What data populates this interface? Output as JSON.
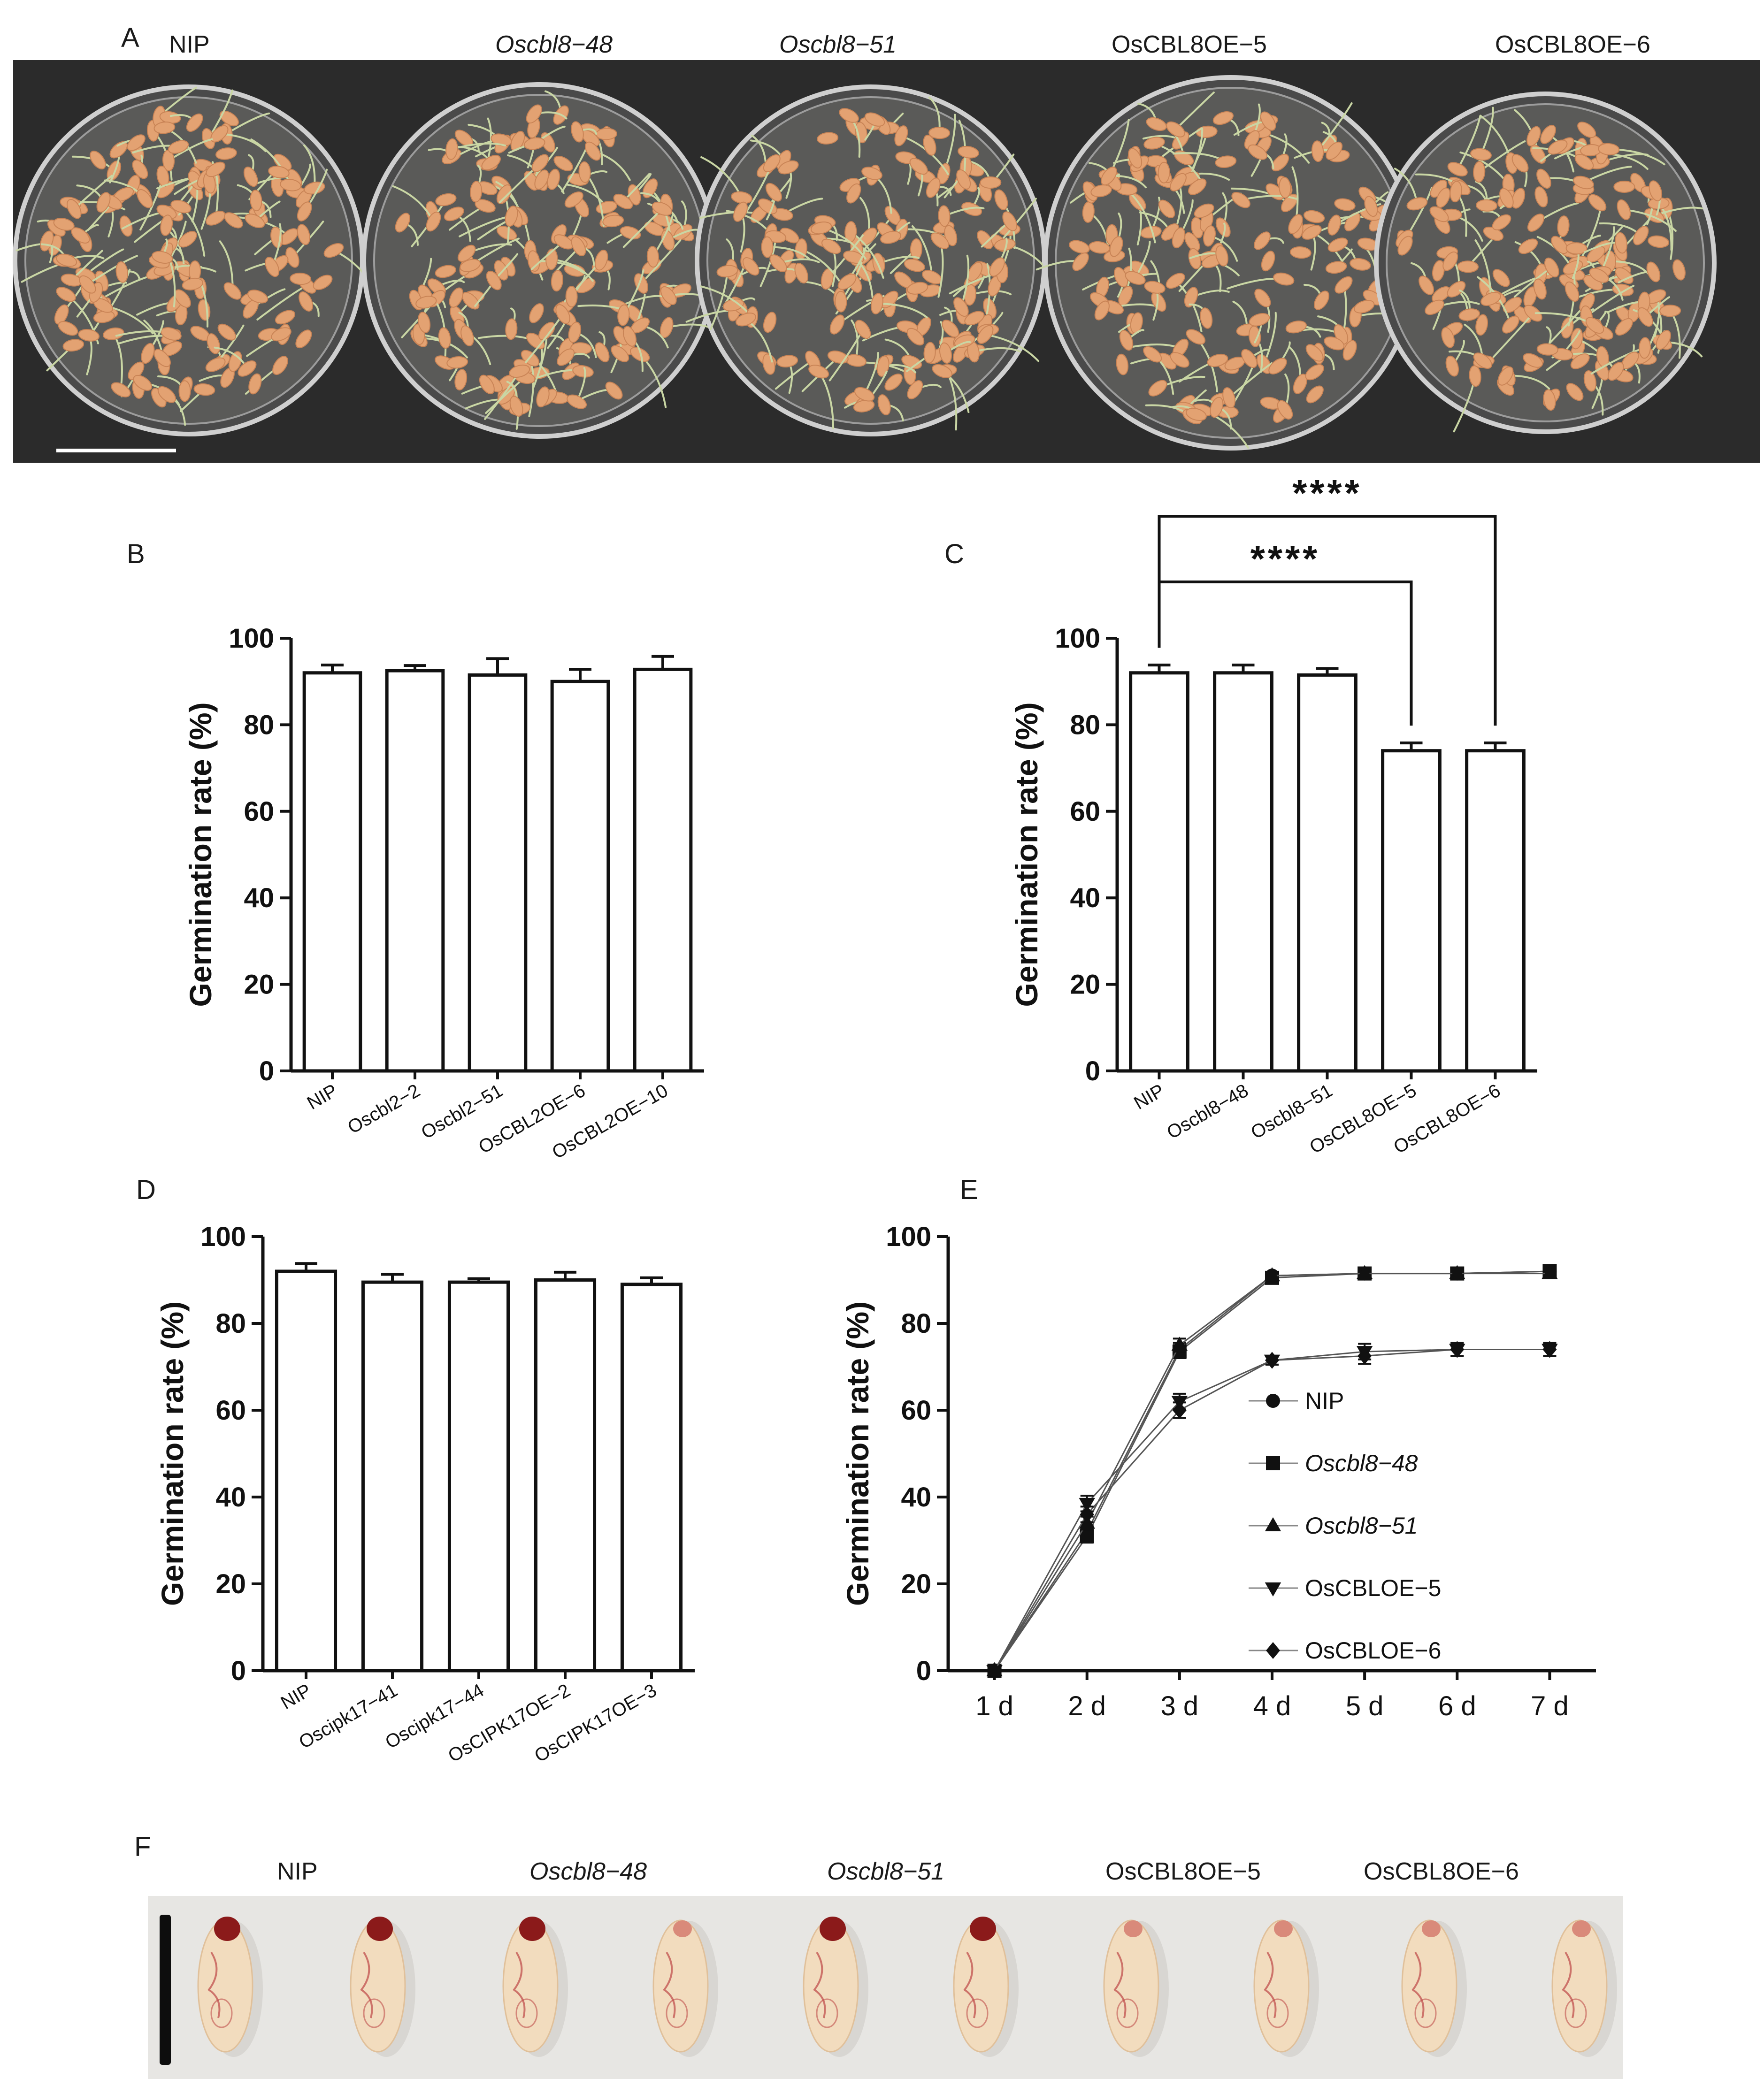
{
  "panels": {
    "A": {
      "label": "A",
      "genotypes": [
        {
          "text": "NIP",
          "italic": false
        },
        {
          "text": "Oscbl8−48",
          "italic": true
        },
        {
          "text": "Oscbl8−51",
          "italic": true
        },
        {
          "text": "OsCBL8OE−5",
          "italic": false
        },
        {
          "text": "OsCBL8OE−6",
          "italic": false
        }
      ],
      "colors": {
        "background": "#2b2b2b",
        "seed": "#e3a272",
        "sprout": "#c9d6a4"
      }
    },
    "F": {
      "label": "F",
      "genotypes": [
        {
          "text": "NIP",
          "italic": false
        },
        {
          "text": "Oscbl8−48",
          "italic": true
        },
        {
          "text": "Oscbl8−51",
          "italic": true
        },
        {
          "text": "OsCBL8OE−5",
          "italic": false
        },
        {
          "text": "OsCBL8OE−6",
          "italic": false
        }
      ],
      "colors": {
        "background": "#e7e6e3",
        "seed": "#f2dcbe",
        "stain": "#c0504d"
      }
    }
  },
  "chart_data": [
    {
      "panel": "B",
      "type": "bar",
      "ylabel": "Germination rate (%)",
      "ylim": [
        0,
        100
      ],
      "yticks": [
        0,
        20,
        40,
        60,
        80,
        100
      ],
      "categories": [
        {
          "text": "NIP",
          "italic": false
        },
        {
          "text": "Oscbl2−2",
          "italic": false
        },
        {
          "text": "Oscbl2−51",
          "italic": false
        },
        {
          "text": "OsCBL2OE−6",
          "italic": false
        },
        {
          "text": "OsCBL2OE−10",
          "italic": false
        }
      ],
      "values": [
        92.0,
        92.5,
        91.5,
        90.0,
        92.8
      ],
      "errors": [
        1.8,
        1.2,
        3.8,
        2.8,
        3.0
      ]
    },
    {
      "panel": "C",
      "type": "bar",
      "ylabel": "Germination rate (%)",
      "ylim": [
        0,
        100
      ],
      "yticks": [
        0,
        20,
        40,
        60,
        80,
        100
      ],
      "categories": [
        {
          "text": "NIP",
          "italic": false
        },
        {
          "text": "Oscbl8−48",
          "italic": false
        },
        {
          "text": "Oscbl8−51",
          "italic": false
        },
        {
          "text": "OsCBL8OE−5",
          "italic": false
        },
        {
          "text": "OsCBL8OE−6",
          "italic": false
        }
      ],
      "values": [
        92.0,
        92.0,
        91.5,
        74.0,
        74.0
      ],
      "errors": [
        1.8,
        1.8,
        1.5,
        1.8,
        1.8
      ],
      "significance": [
        {
          "from": 0,
          "to": 3,
          "label": "****"
        },
        {
          "from": 0,
          "to": 4,
          "label": "****"
        }
      ]
    },
    {
      "panel": "D",
      "type": "bar",
      "ylabel": "Germination rate (%)",
      "ylim": [
        0,
        100
      ],
      "yticks": [
        0,
        20,
        40,
        60,
        80,
        100
      ],
      "categories": [
        {
          "text": "NIP",
          "italic": false
        },
        {
          "text": "Oscipk17−41",
          "italic": false
        },
        {
          "text": "Oscipk17−44",
          "italic": false
        },
        {
          "text": "OsCIPK17OE−2",
          "italic": false
        },
        {
          "text": "OsCIPK17OE−3",
          "italic": false
        }
      ],
      "values": [
        92.0,
        89.5,
        89.5,
        90.0,
        89.0
      ],
      "errors": [
        1.8,
        1.8,
        0.8,
        1.8,
        1.5
      ]
    },
    {
      "panel": "E",
      "type": "line",
      "ylabel": "Germination rate (%)",
      "ylim": [
        0,
        100
      ],
      "yticks": [
        0,
        20,
        40,
        60,
        80,
        100
      ],
      "x": [
        "1 d",
        "2 d",
        "3 d",
        "4 d",
        "5 d",
        "6 d",
        "7 d"
      ],
      "series": [
        {
          "name": "NIP",
          "italic": false,
          "marker": "circle",
          "values": [
            0,
            32,
            74,
            91,
            91.5,
            91.5,
            92
          ],
          "errors": [
            0,
            1.5,
            1.5,
            0.8,
            0.8,
            0.8,
            0.8
          ]
        },
        {
          "name": "Oscbl8−48",
          "italic": true,
          "marker": "square",
          "values": [
            0,
            31,
            73.5,
            90.5,
            91.5,
            91.5,
            92
          ],
          "errors": [
            0,
            1.5,
            1.5,
            0.8,
            0.8,
            0.8,
            1.2
          ]
        },
        {
          "name": "Oscbl8−51",
          "italic": true,
          "marker": "triangle",
          "values": [
            0,
            34,
            75,
            91,
            91.5,
            91.5,
            91.5
          ],
          "errors": [
            0,
            1.5,
            1.5,
            0.8,
            0.8,
            0.8,
            0.8
          ]
        },
        {
          "name": "OsCBLOE−5",
          "italic": false,
          "marker": "triangle-down",
          "values": [
            0,
            38.5,
            62,
            71.5,
            73.5,
            74,
            74
          ],
          "errors": [
            0,
            1.8,
            1.8,
            1.0,
            1.8,
            1.5,
            1.5
          ]
        },
        {
          "name": "OsCBLOE−6",
          "italic": false,
          "marker": "diamond",
          "values": [
            0,
            36,
            60,
            71.5,
            72.5,
            74,
            74
          ],
          "errors": [
            0,
            1.8,
            1.8,
            1.0,
            1.8,
            1.5,
            1.5
          ]
        }
      ]
    }
  ]
}
